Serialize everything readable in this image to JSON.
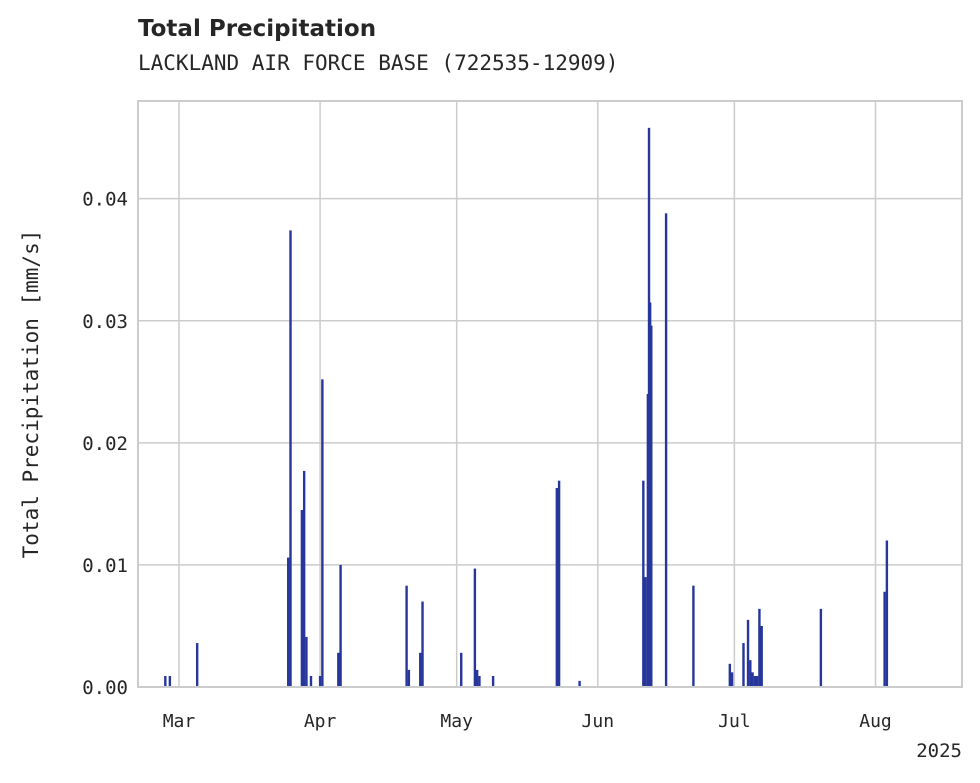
{
  "chart_data": {
    "type": "bar",
    "title": "Total Precipitation",
    "subtitle": "LACKLAND AIR FORCE BASE (722535-12909)",
    "ylabel": "Total Precipitation [mm/s]",
    "xlabel": "",
    "ylim": [
      0,
      0.048
    ],
    "yticks": [
      {
        "value": 0.0,
        "label": "0.00"
      },
      {
        "value": 0.01,
        "label": "0.01"
      },
      {
        "value": 0.02,
        "label": "0.02"
      },
      {
        "value": 0.03,
        "label": "0.03"
      },
      {
        "value": 0.04,
        "label": "0.04"
      }
    ],
    "xlim": [
      "2025-02-20",
      "2025-08-20"
    ],
    "xticks": [
      {
        "date": "2025-03-01",
        "label": "Mar"
      },
      {
        "date": "2025-04-01",
        "label": "Apr"
      },
      {
        "date": "2025-05-01",
        "label": "May"
      },
      {
        "date": "2025-06-01",
        "label": "Jun"
      },
      {
        "date": "2025-07-01",
        "label": "Jul"
      },
      {
        "date": "2025-08-01",
        "label": "Aug"
      }
    ],
    "x_offset_label": "2025",
    "grid": true,
    "color": "#26369a",
    "series": [
      {
        "points": [
          {
            "x": "2025-02-26",
            "y": 0.0009
          },
          {
            "x": "2025-02-27",
            "y": 0.0009
          },
          {
            "x": "2025-03-05",
            "y": 0.0036
          },
          {
            "x": "2025-03-25",
            "y": 0.0106
          },
          {
            "x": "2025-03-25T12:00",
            "y": 0.0374
          },
          {
            "x": "2025-03-28",
            "y": 0.0145
          },
          {
            "x": "2025-03-28T12:00",
            "y": 0.0177
          },
          {
            "x": "2025-03-29",
            "y": 0.0041
          },
          {
            "x": "2025-03-30",
            "y": 0.0009
          },
          {
            "x": "2025-04-01",
            "y": 0.0009
          },
          {
            "x": "2025-04-01T12:00",
            "y": 0.0252
          },
          {
            "x": "2025-04-05",
            "y": 0.0028
          },
          {
            "x": "2025-04-05T12:00",
            "y": 0.01
          },
          {
            "x": "2025-04-20",
            "y": 0.0083
          },
          {
            "x": "2025-04-20T12:00",
            "y": 0.0014
          },
          {
            "x": "2025-04-23",
            "y": 0.0028
          },
          {
            "x": "2025-04-23T12:00",
            "y": 0.007
          },
          {
            "x": "2025-05-02",
            "y": 0.0028
          },
          {
            "x": "2025-05-05",
            "y": 0.0097
          },
          {
            "x": "2025-05-05T12:00",
            "y": 0.0014
          },
          {
            "x": "2025-05-06",
            "y": 0.0009
          },
          {
            "x": "2025-05-09",
            "y": 0.0009
          },
          {
            "x": "2025-05-23",
            "y": 0.0163
          },
          {
            "x": "2025-05-23T12:00",
            "y": 0.0169
          },
          {
            "x": "2025-05-28",
            "y": 0.0005
          },
          {
            "x": "2025-06-11",
            "y": 0.0169
          },
          {
            "x": "2025-06-11T12:00",
            "y": 0.009
          },
          {
            "x": "2025-06-12",
            "y": 0.024
          },
          {
            "x": "2025-06-12T06:00",
            "y": 0.0458
          },
          {
            "x": "2025-06-12T12:00",
            "y": 0.0315
          },
          {
            "x": "2025-06-12T18:00",
            "y": 0.0296
          },
          {
            "x": "2025-06-16",
            "y": 0.0388
          },
          {
            "x": "2025-06-22",
            "y": 0.0083
          },
          {
            "x": "2025-06-30",
            "y": 0.0019
          },
          {
            "x": "2025-06-30T12:00",
            "y": 0.0012
          },
          {
            "x": "2025-07-03",
            "y": 0.0036
          },
          {
            "x": "2025-07-04",
            "y": 0.0055
          },
          {
            "x": "2025-07-04T12:00",
            "y": 0.0022
          },
          {
            "x": "2025-07-05",
            "y": 0.0012
          },
          {
            "x": "2025-07-05T12:00",
            "y": 0.0009
          },
          {
            "x": "2025-07-06",
            "y": 0.0009
          },
          {
            "x": "2025-07-06T12:00",
            "y": 0.0064
          },
          {
            "x": "2025-07-07",
            "y": 0.005
          },
          {
            "x": "2025-07-20",
            "y": 0.0064
          },
          {
            "x": "2025-08-03",
            "y": 0.0078
          },
          {
            "x": "2025-08-03T12:00",
            "y": 0.012
          }
        ]
      }
    ]
  }
}
